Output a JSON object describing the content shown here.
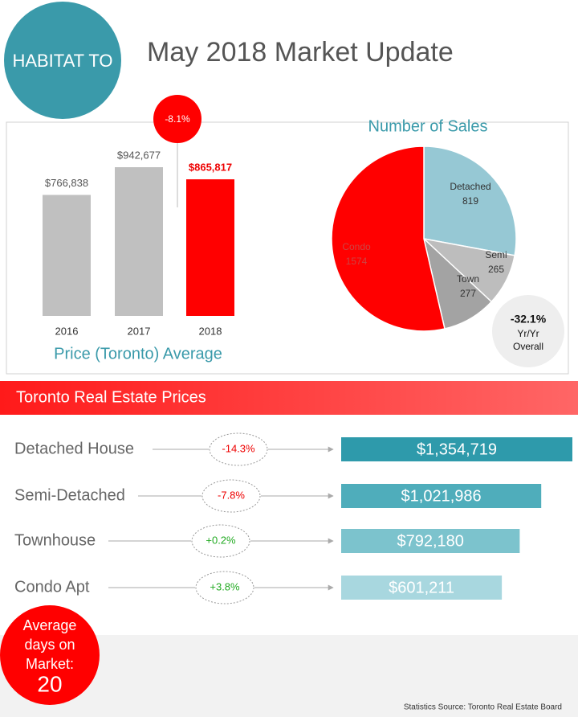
{
  "header": {
    "logo": "HABITAT TO",
    "title": "May 2018 Market Update"
  },
  "chart_data": [
    {
      "type": "bar",
      "title": "Price (Toronto) Average",
      "categories": [
        "2016",
        "2017",
        "2018"
      ],
      "values": [
        766838,
        942677,
        865817
      ],
      "value_labels": [
        "$766,838",
        "$942,677",
        "$865,817"
      ],
      "colors": [
        "#c0c0c0",
        "#c0c0c0",
        "#ff0000"
      ],
      "annotation": "-8.1%"
    },
    {
      "type": "pie",
      "title": "Number of Sales",
      "categories": [
        "Detached",
        "Semi",
        "Town",
        "Condo"
      ],
      "values": [
        819,
        265,
        277,
        1574
      ],
      "colors": [
        "#96c8d4",
        "#bdbdbd",
        "#a3a3a3",
        "#ff0000"
      ],
      "annotation": {
        "value": "-32.1%",
        "lines": [
          "Yr/Yr",
          "Overall"
        ]
      }
    },
    {
      "type": "hbar",
      "title": "Toronto Real Estate Prices",
      "categories": [
        "Detached House",
        "Semi-Detached",
        "Townhouse",
        "Condo Apt"
      ],
      "values": [
        1354719,
        1021986,
        792180,
        601211
      ],
      "value_labels": [
        "$1,354,719",
        "$1,021,986",
        "$792,180",
        "$601,211"
      ],
      "changes": [
        "-14.3%",
        "-7.8%",
        "+0.2%",
        "+3.8%"
      ],
      "colors": [
        "#2e9aab",
        "#4fadbb",
        "#7cc3cd",
        "#a8d7df"
      ]
    }
  ],
  "footer": {
    "days": {
      "lines": [
        "Average",
        "days on",
        "Market:"
      ],
      "value": "20"
    },
    "source": "Statistics Source: Toronto Real Estate Board"
  }
}
